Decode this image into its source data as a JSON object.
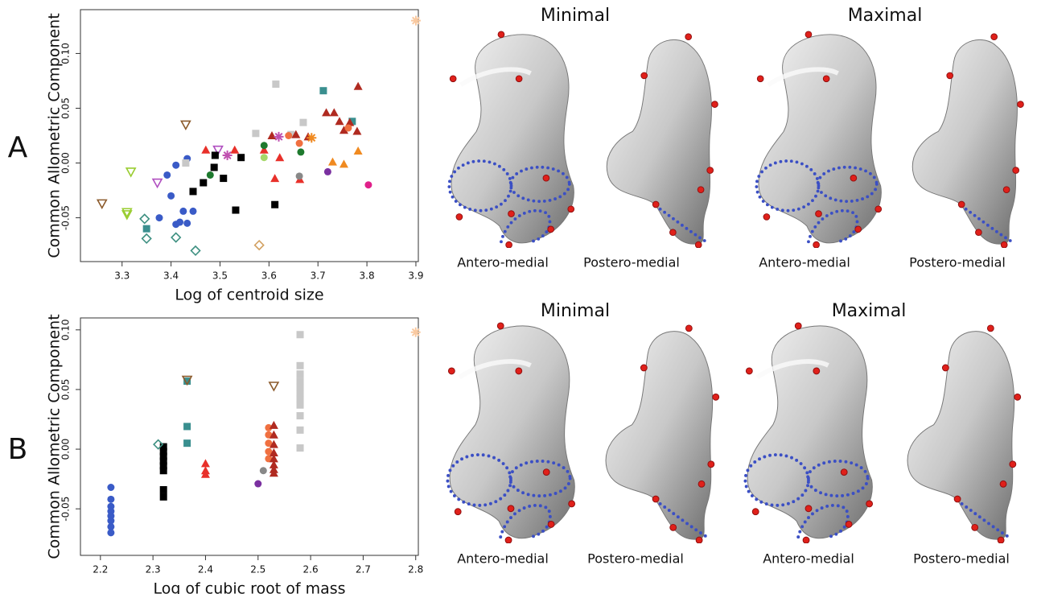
{
  "chart_data": [
    {
      "type": "scatter",
      "panel_label": "A",
      "x_label": "Log of centroid size",
      "y_label": "Common Allometric Component",
      "xlim": [
        3.215,
        3.905
      ],
      "ylim": [
        -0.09,
        0.14
      ],
      "xticks": [
        3.3,
        3.4,
        3.5,
        3.6,
        3.7,
        3.8,
        3.9
      ],
      "yticks": [
        -0.05,
        {
          "value": 0,
          "label": "0.00"
        },
        0.05,
        {
          "value": 0.1,
          "label": "0.10"
        }
      ],
      "view_headers": [
        "Minimal",
        "Maximal"
      ],
      "view_captions": [
        "Antero-medial",
        "Postero-medial",
        "Antero-medial",
        "Postero-medial"
      ],
      "series": [
        {
          "color": "#8b5a2b",
          "marker": "triangle-down-open",
          "x": [
            3.259,
            3.43
          ],
          "y": [
            -0.037,
            0.035
          ]
        },
        {
          "color": "#9acd32",
          "marker": "triangle-down-open",
          "x": [
            3.318,
            3.31,
            3.31
          ],
          "y": [
            -0.008,
            -0.045,
            -0.047
          ]
        },
        {
          "color": "#b04fc0",
          "marker": "triangle-down-open",
          "x": [
            3.372,
            3.496
          ],
          "y": [
            -0.018,
            0.012
          ]
        },
        {
          "color": "#3c8f80",
          "marker": "diamond-open",
          "x": [
            3.346,
            3.35,
            3.41,
            3.45
          ],
          "y": [
            -0.051,
            -0.069,
            -0.068,
            -0.08
          ]
        },
        {
          "color": "#d2a060",
          "marker": "diamond-open",
          "x": [
            3.58
          ],
          "y": [
            -0.075
          ]
        },
        {
          "color": "#3a8f8f",
          "marker": "square",
          "x": [
            3.35,
            3.711,
            3.77
          ],
          "y": [
            -0.06,
            0.066,
            0.038
          ]
        },
        {
          "color": "#3a5bc7",
          "marker": "circle",
          "x": [
            3.376,
            3.392,
            3.4,
            3.41,
            3.41,
            3.418,
            3.425,
            3.433,
            3.445,
            3.433
          ],
          "y": [
            -0.05,
            -0.011,
            -0.03,
            -0.002,
            -0.056,
            -0.054,
            -0.044,
            -0.055,
            -0.044,
            0.004
          ]
        },
        {
          "color": "#000000",
          "marker": "square",
          "x": [
            3.445,
            3.466,
            3.488,
            3.49,
            3.507,
            3.543,
            3.532,
            3.612
          ],
          "y": [
            -0.026,
            -0.018,
            -0.004,
            0.007,
            -0.014,
            0.005,
            -0.043,
            -0.038
          ]
        },
        {
          "color": "#c8c8c8",
          "marker": "square",
          "x": [
            3.43,
            3.614,
            3.573,
            3.67,
            3.645
          ],
          "y": [
            0.0,
            0.072,
            0.027,
            0.037,
            0.026
          ]
        },
        {
          "color": "#e8302a",
          "marker": "triangle",
          "x": [
            3.471,
            3.53,
            3.59,
            3.622,
            3.612,
            3.663
          ],
          "y": [
            0.012,
            0.012,
            0.012,
            0.005,
            -0.014,
            -0.015
          ]
        },
        {
          "color": "#b02a20",
          "marker": "triangle",
          "x": [
            3.782,
            3.717,
            3.733,
            3.744,
            3.765,
            3.753,
            3.78,
            3.655,
            3.68,
            3.606
          ],
          "y": [
            0.07,
            0.046,
            0.046,
            0.038,
            0.037,
            0.03,
            0.029,
            0.026,
            0.024,
            0.025
          ]
        },
        {
          "color": "#f08a20",
          "marker": "triangle",
          "x": [
            3.73,
            3.753,
            3.782
          ],
          "y": [
            0.001,
            -0.001,
            0.011
          ]
        },
        {
          "color": "#f07040",
          "marker": "circle",
          "x": [
            3.662,
            3.762,
            3.64
          ],
          "y": [
            0.018,
            0.032,
            0.025
          ]
        },
        {
          "color": "#f08a20",
          "marker": "asterisk",
          "x": [
            3.687
          ],
          "y": [
            0.023
          ]
        },
        {
          "color": "#c050b0",
          "marker": "asterisk",
          "x": [
            3.515,
            3.62
          ],
          "y": [
            0.007,
            0.024
          ]
        },
        {
          "color": "#1e7a2e",
          "marker": "circle",
          "x": [
            3.48,
            3.665,
            3.59
          ],
          "y": [
            -0.011,
            0.01,
            0.016
          ]
        },
        {
          "color": "#a6d86a",
          "marker": "circle",
          "x": [
            3.59
          ],
          "y": [
            0.005
          ]
        },
        {
          "color": "#888888",
          "marker": "circle",
          "x": [
            3.662
          ],
          "y": [
            -0.012
          ]
        },
        {
          "color": "#7a30a0",
          "marker": "circle",
          "x": [
            3.72
          ],
          "y": [
            -0.008
          ]
        },
        {
          "color": "#e0208a",
          "marker": "circle",
          "x": [
            3.803
          ],
          "y": [
            -0.02
          ]
        },
        {
          "color": "#f9c9a0",
          "marker": "asterisk",
          "x": [
            3.9
          ],
          "y": [
            0.13
          ]
        }
      ]
    },
    {
      "type": "scatter",
      "panel_label": "B",
      "x_label": "Log of cubic root of mass",
      "y_label": "Common Allometric Component",
      "xlim": [
        2.162,
        2.805
      ],
      "ylim": [
        -0.089,
        0.11
      ],
      "xticks": [
        2.2,
        2.3,
        2.4,
        2.5,
        2.6,
        2.7,
        2.8
      ],
      "yticks": [
        -0.05,
        {
          "value": 0,
          "label": "0.00"
        },
        0.05,
        {
          "value": 0.1,
          "label": "0.10"
        }
      ],
      "view_headers": [
        "Minimal",
        "Maximal"
      ],
      "view_captions": [
        "Antero-medial",
        "Postero-medial",
        "Antero-medial",
        "Postero-medial"
      ],
      "series": [
        {
          "color": "#3a5bc7",
          "marker": "circle",
          "x": [
            2.22,
            2.22,
            2.22,
            2.22,
            2.22,
            2.22,
            2.22,
            2.22
          ],
          "y": [
            -0.032,
            -0.042,
            -0.048,
            -0.052,
            -0.056,
            -0.06,
            -0.065,
            -0.07
          ]
        },
        {
          "color": "#000000",
          "marker": "square",
          "x": [
            2.32,
            2.32,
            2.32,
            2.32,
            2.32,
            2.32,
            2.32,
            2.32
          ],
          "y": [
            0.002,
            -0.002,
            -0.006,
            -0.01,
            -0.014,
            -0.018,
            -0.034,
            -0.04
          ]
        },
        {
          "color": "#3c8f80",
          "marker": "diamond-open",
          "x": [
            2.31
          ],
          "y": [
            0.004
          ]
        },
        {
          "color": "#3a8f8f",
          "marker": "square",
          "x": [
            2.365,
            2.365,
            2.365
          ],
          "y": [
            0.057,
            0.019,
            0.005
          ]
        },
        {
          "color": "#8b5a2b",
          "marker": "triangle-down-open",
          "x": [
            2.365,
            2.53
          ],
          "y": [
            0.058,
            0.053
          ]
        },
        {
          "color": "#e8302a",
          "marker": "triangle",
          "x": [
            2.4,
            2.4,
            2.4
          ],
          "y": [
            -0.012,
            -0.018,
            -0.021
          ]
        },
        {
          "color": "#f07040",
          "marker": "circle",
          "x": [
            2.52,
            2.52,
            2.52,
            2.52,
            2.52
          ],
          "y": [
            0.018,
            0.012,
            0.005,
            -0.002,
            -0.008
          ]
        },
        {
          "color": "#888888",
          "marker": "circle",
          "x": [
            2.51
          ],
          "y": [
            -0.018
          ]
        },
        {
          "color": "#7a30a0",
          "marker": "circle",
          "x": [
            2.5
          ],
          "y": [
            -0.029
          ]
        },
        {
          "color": "#b02a20",
          "marker": "triangle",
          "x": [
            2.53,
            2.53,
            2.53,
            2.53,
            2.53,
            2.53,
            2.53,
            2.53
          ],
          "y": [
            0.02,
            0.012,
            0.004,
            -0.003,
            -0.008,
            -0.013,
            -0.017,
            -0.02
          ]
        },
        {
          "color": "#c8c8c8",
          "marker": "square",
          "x": [
            2.58,
            2.58,
            2.58,
            2.58,
            2.58,
            2.58,
            2.58,
            2.58,
            2.58,
            2.58,
            2.58
          ],
          "y": [
            0.096,
            0.07,
            0.063,
            0.057,
            0.052,
            0.047,
            0.042,
            0.037,
            0.028,
            0.016,
            0.001
          ]
        },
        {
          "color": "#f9c9a0",
          "marker": "asterisk",
          "x": [
            2.8
          ],
          "y": [
            0.098
          ]
        }
      ]
    }
  ]
}
